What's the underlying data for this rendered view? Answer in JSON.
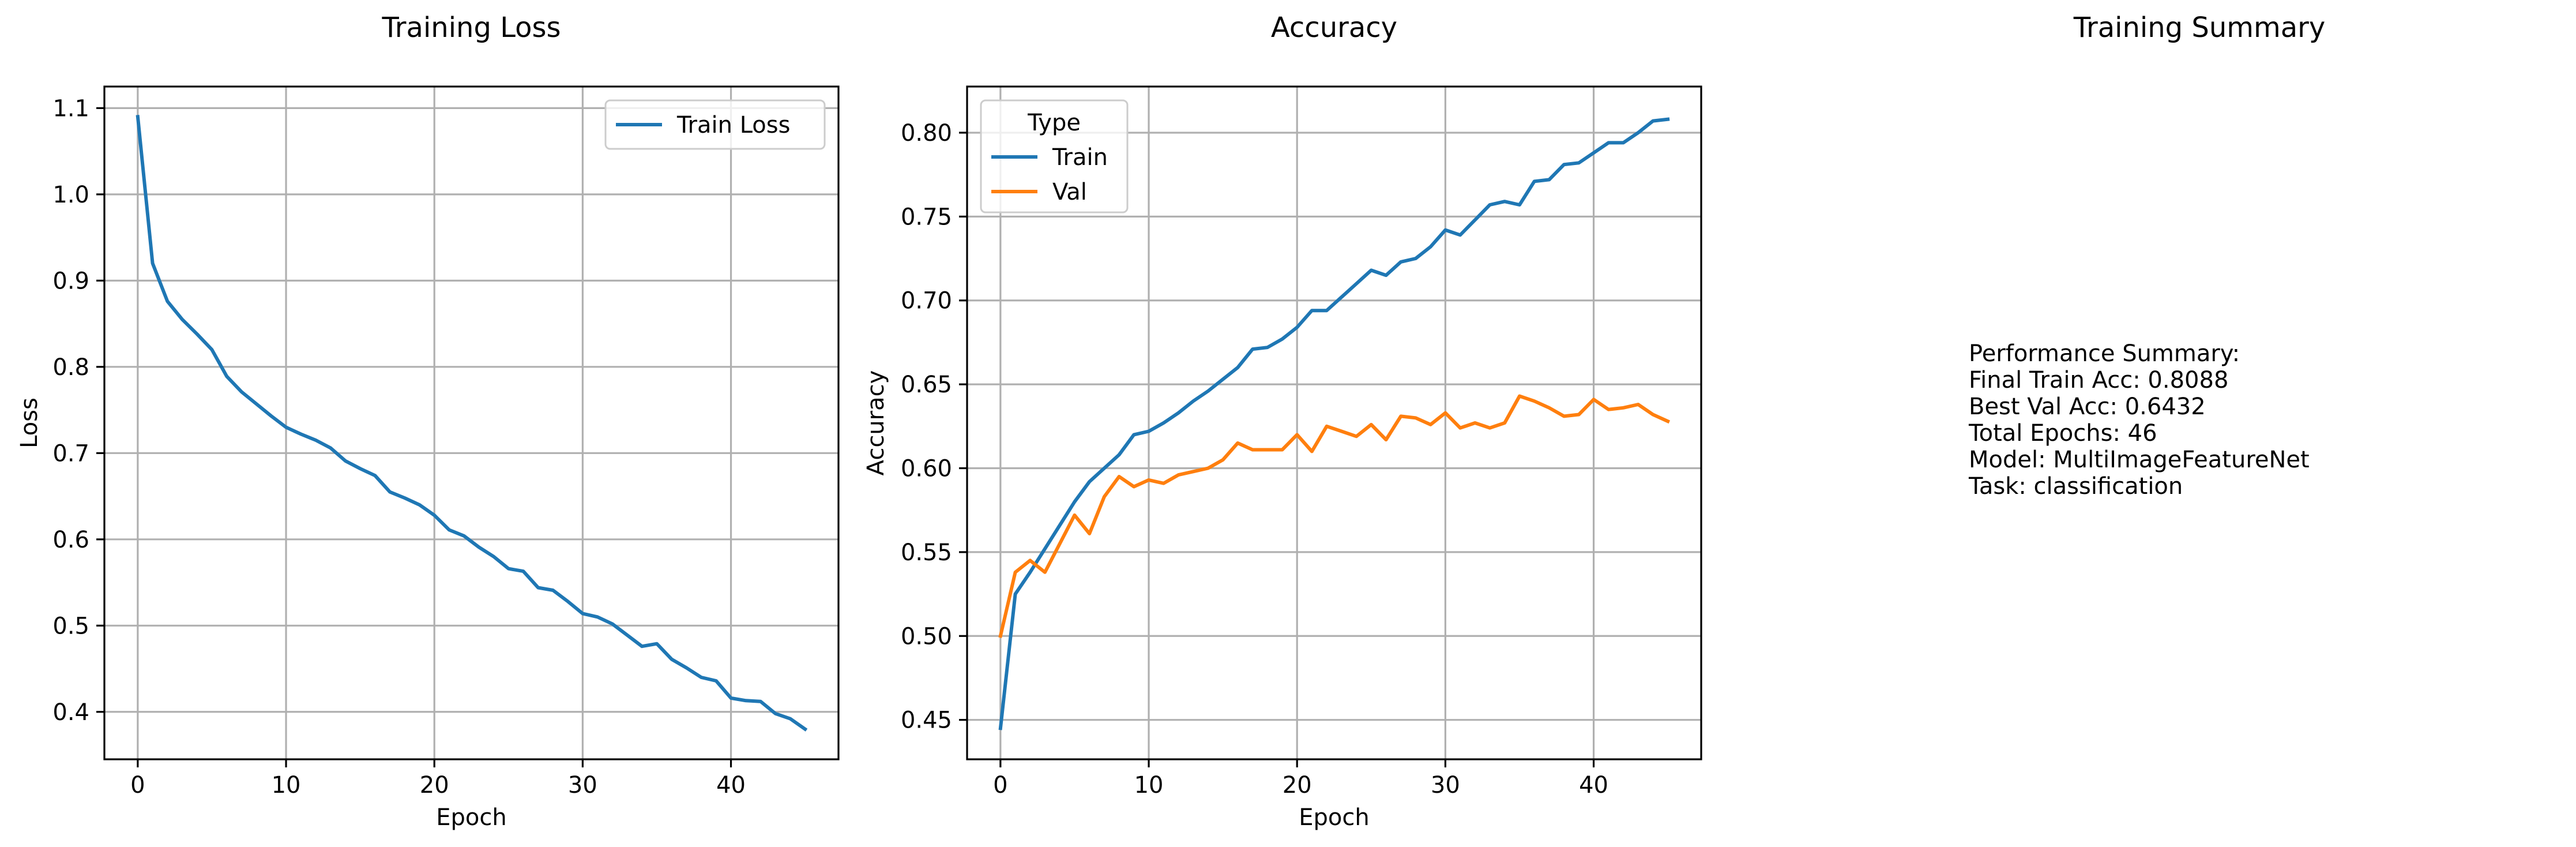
{
  "figure": {
    "summary_panel": {
      "title": "Training Summary",
      "lines": [
        "Performance Summary:",
        "Final Train Acc: 0.8088",
        "Best Val Acc: 0.6432",
        "Total Epochs: 46",
        "Model: MultiImageFeatureNet",
        "Task: classification"
      ]
    }
  },
  "chart_data": [
    {
      "type": "line",
      "title": "Training Loss",
      "xlabel": "Epoch",
      "ylabel": "Loss",
      "xlim": [
        -2.25,
        47.25
      ],
      "ylim": [
        0.345,
        1.125
      ],
      "xticks": [
        0,
        10,
        20,
        30,
        40
      ],
      "yticks": [
        0.4,
        0.5,
        0.6,
        0.7,
        0.8,
        0.9,
        1.0,
        1.1
      ],
      "ytick_labels": [
        "0.4",
        "0.5",
        "0.6",
        "0.7",
        "0.8",
        "0.9",
        "1.0",
        "1.1"
      ],
      "grid": true,
      "legend": {
        "position": "upper right",
        "title": ""
      },
      "series": [
        {
          "name": "Train Loss",
          "color": "#1f77b4",
          "x": [
            0,
            1,
            2,
            3,
            4,
            5,
            6,
            7,
            8,
            9,
            10,
            11,
            12,
            13,
            14,
            15,
            16,
            17,
            18,
            19,
            20,
            21,
            22,
            23,
            24,
            25,
            26,
            27,
            28,
            29,
            30,
            31,
            32,
            33,
            34,
            35,
            36,
            37,
            38,
            39,
            40,
            41,
            42,
            43,
            44,
            45
          ],
          "y": [
            1.09,
            0.92,
            0.876,
            0.855,
            0.838,
            0.82,
            0.789,
            0.771,
            0.757,
            0.743,
            0.73,
            0.722,
            0.715,
            0.706,
            0.691,
            0.682,
            0.674,
            0.655,
            0.648,
            0.64,
            0.628,
            0.611,
            0.604,
            0.591,
            0.58,
            0.566,
            0.563,
            0.544,
            0.541,
            0.528,
            0.514,
            0.51,
            0.502,
            0.489,
            0.476,
            0.479,
            0.461,
            0.451,
            0.44,
            0.436,
            0.416,
            0.413,
            0.412,
            0.398,
            0.392,
            0.38
          ]
        }
      ]
    },
    {
      "type": "line",
      "title": "Accuracy",
      "xlabel": "Epoch",
      "ylabel": "Accuracy",
      "xlim": [
        -2.25,
        47.25
      ],
      "ylim": [
        0.4265,
        0.8275
      ],
      "xticks": [
        0,
        10,
        20,
        30,
        40
      ],
      "yticks": [
        0.45,
        0.5,
        0.55,
        0.6,
        0.65,
        0.7,
        0.75,
        0.8
      ],
      "ytick_labels": [
        "0.45",
        "0.50",
        "0.55",
        "0.60",
        "0.65",
        "0.70",
        "0.75",
        "0.80"
      ],
      "grid": true,
      "legend": {
        "position": "upper left",
        "title": "Type"
      },
      "series": [
        {
          "name": "Train",
          "color": "#1f77b4",
          "x": [
            0,
            1,
            2,
            3,
            4,
            5,
            6,
            7,
            8,
            9,
            10,
            11,
            12,
            13,
            14,
            15,
            16,
            17,
            18,
            19,
            20,
            21,
            22,
            23,
            24,
            25,
            26,
            27,
            28,
            29,
            30,
            31,
            32,
            33,
            34,
            35,
            36,
            37,
            38,
            39,
            40,
            41,
            42,
            43,
            44,
            45
          ],
          "y": [
            0.445,
            0.525,
            0.538,
            0.552,
            0.566,
            0.58,
            0.592,
            0.6,
            0.608,
            0.62,
            0.622,
            0.627,
            0.633,
            0.64,
            0.646,
            0.653,
            0.66,
            0.671,
            0.672,
            0.677,
            0.684,
            0.694,
            0.694,
            0.702,
            0.71,
            0.718,
            0.715,
            0.723,
            0.725,
            0.732,
            0.742,
            0.739,
            0.748,
            0.757,
            0.759,
            0.757,
            0.771,
            0.772,
            0.781,
            0.782,
            0.788,
            0.794,
            0.794,
            0.8,
            0.807,
            0.808
          ]
        },
        {
          "name": "Val",
          "color": "#ff7f0e",
          "x": [
            0,
            1,
            2,
            3,
            4,
            5,
            6,
            7,
            8,
            9,
            10,
            11,
            12,
            13,
            14,
            15,
            16,
            17,
            18,
            19,
            20,
            21,
            22,
            23,
            24,
            25,
            26,
            27,
            28,
            29,
            30,
            31,
            32,
            33,
            34,
            35,
            36,
            37,
            38,
            39,
            40,
            41,
            42,
            43,
            44,
            45
          ],
          "y": [
            0.5,
            0.538,
            0.545,
            0.538,
            0.555,
            0.572,
            0.561,
            0.583,
            0.595,
            0.589,
            0.593,
            0.591,
            0.596,
            0.598,
            0.6,
            0.605,
            0.615,
            0.611,
            0.611,
            0.611,
            0.62,
            0.61,
            0.625,
            0.622,
            0.619,
            0.626,
            0.617,
            0.631,
            0.63,
            0.626,
            0.633,
            0.624,
            0.627,
            0.624,
            0.627,
            0.643,
            0.64,
            0.636,
            0.631,
            0.632,
            0.641,
            0.635,
            0.636,
            0.638,
            0.632,
            0.628
          ]
        }
      ]
    }
  ]
}
